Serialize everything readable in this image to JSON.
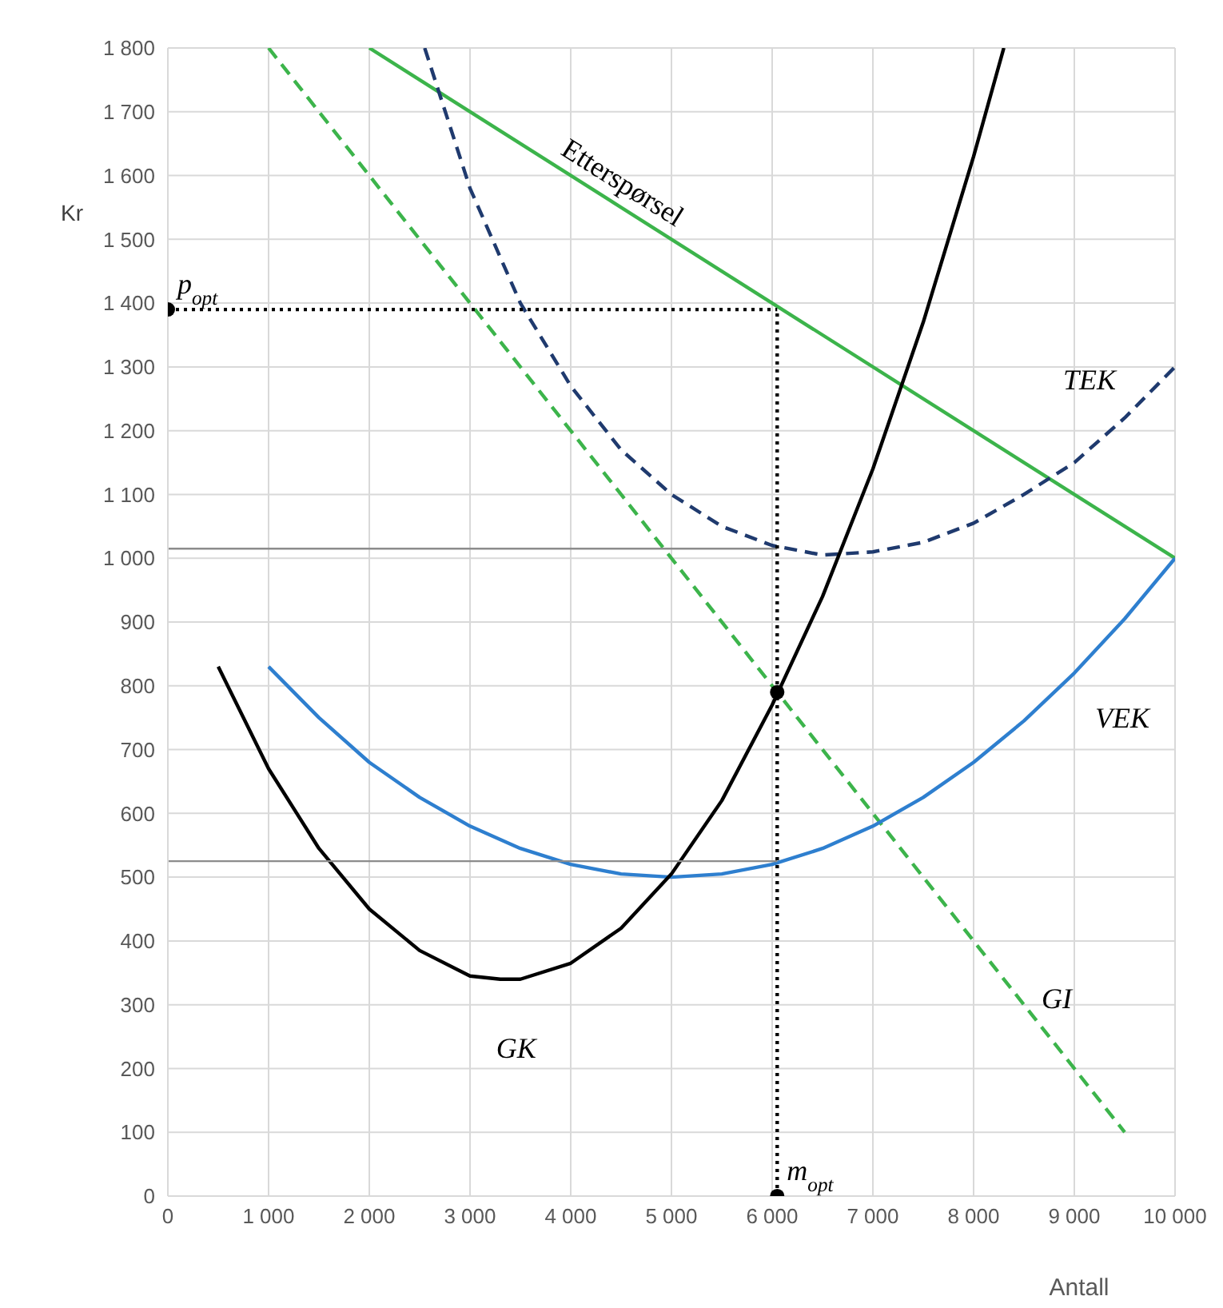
{
  "chart_data": {
    "type": "line",
    "xlabel": "Antall",
    "ylabel": "Kr",
    "xlim": [
      0,
      10000
    ],
    "ylim": [
      0,
      1800
    ],
    "xticks": [
      0,
      {
        "value": 1000,
        "label": "1 000"
      },
      {
        "value": 2000,
        "label": "2 000"
      },
      {
        "value": 3000,
        "label": "3 000"
      },
      {
        "value": 4000,
        "label": "4 000"
      },
      {
        "value": 5000,
        "label": "5 000"
      },
      {
        "value": 6000,
        "label": "6 000"
      },
      {
        "value": 7000,
        "label": "7 000"
      },
      {
        "value": 8000,
        "label": "8 000"
      },
      {
        "value": 9000,
        "label": "9 000"
      },
      {
        "value": 10000,
        "label": "10 000"
      }
    ],
    "yticks": [
      0,
      100,
      200,
      300,
      400,
      500,
      600,
      700,
      800,
      900,
      {
        "value": 1000,
        "label": "1 000"
      },
      {
        "value": 1100,
        "label": "1 100"
      },
      {
        "value": 1200,
        "label": "1 200"
      },
      {
        "value": 1300,
        "label": "1 300"
      },
      {
        "value": 1400,
        "label": "1 400"
      },
      {
        "value": 1500,
        "label": "1 500"
      },
      {
        "value": 1600,
        "label": "1 600"
      },
      {
        "value": 1700,
        "label": "1 700"
      },
      {
        "value": 1800,
        "label": "1 800"
      }
    ],
    "grid": true,
    "marker": "none",
    "series": [
      {
        "color": "#3cb44b",
        "line_style": "solid",
        "x": [
          2000,
          10000
        ],
        "values": [
          1800,
          1000
        ]
      },
      {
        "color": "#3cb44b",
        "line_style": "dashed",
        "x": [
          1000,
          9500
        ],
        "values": [
          1800,
          100
        ]
      },
      {
        "color": "#1f3a6e",
        "line_style": "dashed",
        "x": [
          2550,
          3000,
          3500,
          4000,
          4500,
          5000,
          5500,
          6000,
          6500,
          7000,
          7500,
          8000,
          8500,
          9000,
          9500,
          10000
        ],
        "values": [
          1800,
          1580,
          1400,
          1270,
          1170,
          1100,
          1050,
          1020,
          1005,
          1010,
          1025,
          1055,
          1100,
          1150,
          1220,
          1300
        ]
      },
      {
        "color": "#2e7fcf",
        "line_style": "solid",
        "x": [
          1000,
          1500,
          2000,
          2500,
          3000,
          3500,
          4000,
          4500,
          5000,
          5500,
          6000,
          6500,
          7000,
          7500,
          8000,
          8500,
          9000,
          9500,
          10000
        ],
        "values": [
          830,
          750,
          680,
          625,
          580,
          545,
          520,
          505,
          500,
          505,
          520,
          545,
          580,
          625,
          680,
          745,
          820,
          905,
          1000
        ]
      },
      {
        "color": "#000000",
        "line_style": "solid",
        "x": [
          500,
          1000,
          1500,
          2000,
          2500,
          3000,
          3300,
          3500,
          4000,
          4500,
          5000,
          5500,
          6000,
          6500,
          7000,
          7500,
          8000,
          8300
        ],
        "values": [
          830,
          670,
          545,
          450,
          385,
          345,
          340,
          340,
          365,
          420,
          505,
          620,
          770,
          940,
          1140,
          1370,
          1630,
          1800
        ]
      },
      {
        "color": "#8c8c8c",
        "line_style": "solid",
        "x": [
          0,
          6050
        ],
        "values": [
          1015,
          1015
        ]
      },
      {
        "color": "#8c8c8c",
        "line_style": "solid",
        "x": [
          0,
          6050
        ],
        "values": [
          525,
          525
        ]
      },
      {
        "color": "#000000",
        "line_style": "dotted",
        "x": [
          0,
          6050
        ],
        "values": [
          1390,
          1390
        ]
      },
      {
        "color": "#000000",
        "line_style": "dotted",
        "x": [
          6050,
          6050
        ],
        "values": [
          0,
          1390
        ]
      },
      {
        "type": "scatter",
        "color": "#000000",
        "marker": "circle",
        "x": [
          0,
          6050,
          6050
        ],
        "values": [
          1390,
          790,
          0
        ]
      }
    ],
    "annotations": [
      {
        "text": "Etterspørsel",
        "x": 4500,
        "y": 1550
      },
      {
        "text": "TEK",
        "x": 9500,
        "y": 1220
      },
      {
        "text": "VEK",
        "x": 9000,
        "y": 820
      },
      {
        "text": "GI",
        "x": 8350,
        "y": 330
      },
      {
        "text": "GK",
        "x": 3300,
        "y": 340
      },
      {
        "text": "p$_{opt}$",
        "x": 0,
        "y": 1390
      },
      {
        "text": "m$_{opt}$",
        "x": 6050,
        "y": 0
      }
    ]
  }
}
